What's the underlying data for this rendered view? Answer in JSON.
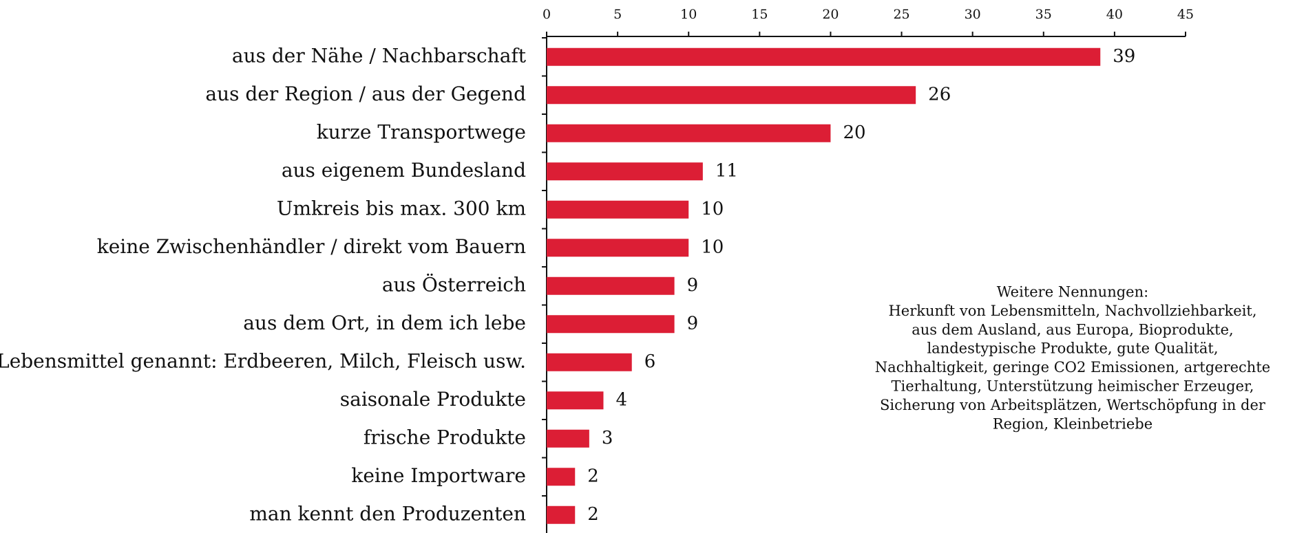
{
  "chart_data": {
    "type": "bar",
    "orientation": "horizontal",
    "categories": [
      "aus der Nähe / Nachbarschaft",
      "aus der Region / aus der Gegend",
      "kurze Transportwege",
      "aus eigenem Bundesland",
      "Umkreis bis max. 300 km",
      "keine Zwischenhändler / direkt vom Bauern",
      "aus Österreich",
      "aus dem Ort, in dem ich lebe",
      "Lebensmittel genannt: Erdbeeren, Milch, Fleisch usw.",
      "saisonale Produkte",
      "frische Produkte",
      "keine Importware",
      "man kennt den Produzenten"
    ],
    "values": [
      39,
      26,
      20,
      11,
      10,
      10,
      9,
      9,
      6,
      4,
      3,
      2,
      2
    ],
    "color": "#dc1e35",
    "xlim": [
      0,
      45
    ],
    "xticks": [
      0,
      5,
      10,
      15,
      20,
      25,
      30,
      35,
      40,
      45
    ],
    "annotation": {
      "title": "Weitere Nennungen:",
      "lines": [
        "Herkunft von Lebensmitteln, Nachvollziehbarkeit,",
        "aus dem Ausland, aus Europa, Bioprodukte,",
        "landestypische Produkte, gute Qualität,",
        "Nachhaltigkeit, geringe CO2 Emissionen, artgerechte",
        "Tierhaltung, Unterstützung heimischer Erzeuger,",
        "Sicherung von Arbeitsplätzen, Wertschöpfung in der",
        "Region, Kleinbetriebe"
      ]
    }
  }
}
